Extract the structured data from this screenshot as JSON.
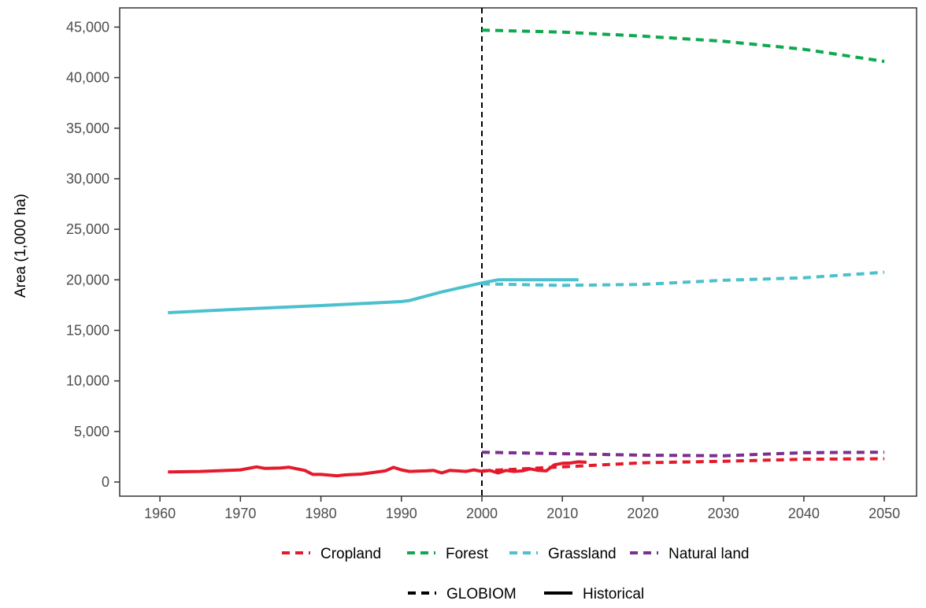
{
  "chart_data": {
    "type": "line",
    "ylabel": "Area (1,000 ha)",
    "xlabel": "",
    "xlim": [
      1955,
      2054
    ],
    "ylim": [
      -1400,
      46900
    ],
    "x_ticks": [
      1960,
      1970,
      1980,
      1990,
      2000,
      2010,
      2020,
      2030,
      2040,
      2050
    ],
    "x_tick_labels": [
      "1960",
      "1970",
      "1980",
      "1990",
      "2000",
      "2010",
      "2020",
      "2030",
      "2040",
      "2050"
    ],
    "y_ticks": [
      0,
      5000,
      10000,
      15000,
      20000,
      25000,
      30000,
      35000,
      40000,
      45000
    ],
    "y_tick_labels": [
      "0",
      "5,000",
      "10,000",
      "15,000",
      "20,000",
      "25,000",
      "30,000",
      "35,000",
      "40,000",
      "45,000"
    ],
    "reference_line": {
      "x": 2000,
      "style": "dashed",
      "color": "#000000"
    },
    "grid": false,
    "legend_position": "bottom",
    "colors": {
      "Cropland": "#e41a2c",
      "Forest": "#0fa84f",
      "Grassland": "#4bc0ce",
      "Natural land": "#7b2f8e"
    },
    "series": [
      {
        "land_type": "Grassland",
        "source": "Historical",
        "x": [
          1961,
          1970,
          1980,
          1990,
          1991,
          1995,
          2000,
          2002,
          2012
        ],
        "y": [
          16750,
          17100,
          17450,
          17850,
          17950,
          18800,
          19700,
          20000,
          20000
        ]
      },
      {
        "land_type": "Cropland",
        "source": "Historical",
        "x": [
          1961,
          1965,
          1970,
          1972,
          1973,
          1975,
          1976,
          1978,
          1979,
          1980,
          1982,
          1983,
          1985,
          1988,
          1989,
          1990,
          1991,
          1993,
          1994,
          1995,
          1996,
          1997,
          1998,
          1999,
          2000,
          2001,
          2002,
          2003,
          2004,
          2005,
          2006,
          2007,
          2008,
          2009,
          2010,
          2011,
          2012,
          2013
        ],
        "y": [
          1000,
          1050,
          1200,
          1500,
          1350,
          1380,
          1470,
          1150,
          750,
          750,
          620,
          700,
          780,
          1100,
          1450,
          1200,
          1050,
          1100,
          1150,
          900,
          1150,
          1100,
          1050,
          1200,
          1050,
          1150,
          900,
          1150,
          1050,
          1100,
          1300,
          1150,
          1100,
          1700,
          1850,
          1880,
          2000,
          1950
        ]
      },
      {
        "land_type": "Forest",
        "source": "GLOBIOM",
        "x": [
          2000,
          2010,
          2020,
          2030,
          2040,
          2050
        ],
        "y": [
          44700,
          44500,
          44100,
          43600,
          42800,
          41600
        ]
      },
      {
        "land_type": "Grassland",
        "source": "GLOBIOM",
        "x": [
          2000,
          2010,
          2020,
          2030,
          2040,
          2050
        ],
        "y": [
          19600,
          19450,
          19550,
          19950,
          20200,
          20750
        ]
      },
      {
        "land_type": "Natural land",
        "source": "GLOBIOM",
        "x": [
          2000,
          2010,
          2020,
          2030,
          2040,
          2050
        ],
        "y": [
          2950,
          2800,
          2650,
          2600,
          2900,
          2950
        ]
      },
      {
        "land_type": "Cropland",
        "source": "GLOBIOM",
        "x": [
          2000,
          2010,
          2020,
          2030,
          2040,
          2050
        ],
        "y": [
          1100,
          1500,
          1900,
          2050,
          2250,
          2300
        ]
      }
    ],
    "legend_land": {
      "labels": [
        "Cropland",
        "Forest",
        "Grassland",
        "Natural land"
      ]
    },
    "legend_source": {
      "labels": [
        "GLOBIOM",
        "Historical"
      ]
    }
  }
}
